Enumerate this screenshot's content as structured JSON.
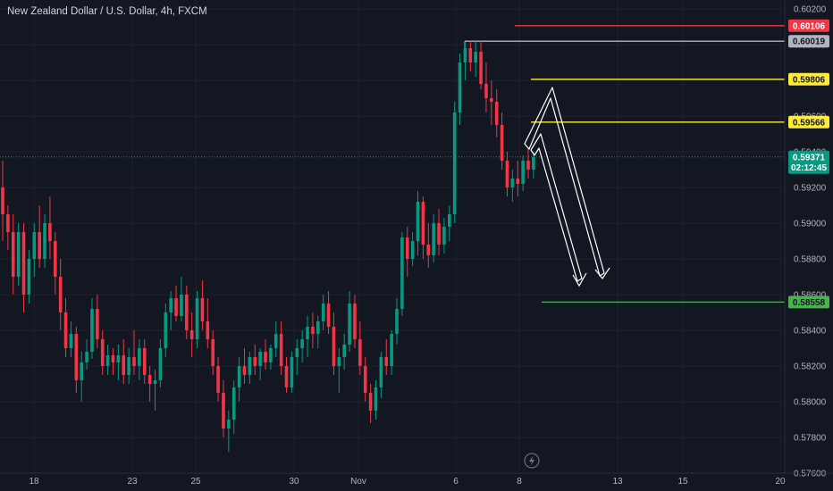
{
  "header": {
    "title": "New Zealand Dollar / U.S. Dollar, 4h, FXCM"
  },
  "chart_data": {
    "type": "candlestick",
    "symbol": "NZDUSD",
    "ylim": [
      0.575,
      0.6025
    ],
    "y_ticks": [
      "0.60200",
      "0.60000",
      "0.59800",
      "0.59600",
      "0.59400",
      "0.59200",
      "0.59000",
      "0.58800",
      "0.58600",
      "0.58400",
      "0.58200",
      "0.58000",
      "0.57800",
      "0.57600"
    ],
    "x_ticks": [
      "18",
      "23",
      "25",
      "30",
      "Nov",
      "6",
      "8",
      "13",
      "15",
      "20"
    ],
    "current_price": {
      "label": "0.59371",
      "countdown": "02:12:45",
      "color": "#089981"
    },
    "levels": [
      {
        "name": "red-level",
        "label": "0.60106",
        "color": "#f23645",
        "text_color": "#ffffff"
      },
      {
        "name": "grey-level",
        "label": "0.60019",
        "color": "#b2b5be",
        "text_color": "#131722"
      },
      {
        "name": "yellow-level-upper",
        "label": "0.59806",
        "color": "#ffeb3b",
        "text_color": "#131722"
      },
      {
        "name": "yellow-level-lower",
        "label": "0.59566",
        "color": "#ffeb3b",
        "text_color": "#131722"
      },
      {
        "name": "green-level",
        "label": "0.58558",
        "color": "#4caf50",
        "text_color": "#131722"
      }
    ],
    "series": [
      {
        "values": [
          [
            0.592,
            0.5935,
            0.589,
            0.5905
          ],
          [
            0.5905,
            0.591,
            0.5885,
            0.5895
          ],
          [
            0.5895,
            0.5905,
            0.586,
            0.587
          ],
          [
            0.587,
            0.59,
            0.5865,
            0.5895
          ],
          [
            0.5895,
            0.59,
            0.585,
            0.586
          ],
          [
            0.586,
            0.5885,
            0.5855,
            0.588
          ],
          [
            0.588,
            0.59,
            0.587,
            0.5895
          ],
          [
            0.5895,
            0.591,
            0.5875,
            0.588
          ],
          [
            0.588,
            0.5905,
            0.5875,
            0.59
          ],
          [
            0.59,
            0.5915,
            0.588,
            0.589
          ],
          [
            0.589,
            0.5895,
            0.586,
            0.587
          ],
          [
            0.587,
            0.588,
            0.584,
            0.585
          ],
          [
            0.585,
            0.5858,
            0.5825,
            0.583
          ],
          [
            0.583,
            0.5845,
            0.5825,
            0.5838
          ],
          [
            0.5838,
            0.5842,
            0.5805,
            0.5812
          ],
          [
            0.5812,
            0.5828,
            0.58,
            0.5822
          ],
          [
            0.5822,
            0.5835,
            0.5818,
            0.5828
          ],
          [
            0.5828,
            0.5858,
            0.5824,
            0.5852
          ],
          [
            0.5852,
            0.586,
            0.583,
            0.5835
          ],
          [
            0.5835,
            0.584,
            0.5815,
            0.582
          ],
          [
            0.582,
            0.5832,
            0.5815,
            0.5826
          ],
          [
            0.5826,
            0.583,
            0.5815,
            0.5822
          ],
          [
            0.5822,
            0.5832,
            0.5812,
            0.5826
          ],
          [
            0.5826,
            0.5835,
            0.581,
            0.5815
          ],
          [
            0.5815,
            0.583,
            0.581,
            0.5825
          ],
          [
            0.5825,
            0.584,
            0.5815,
            0.582
          ],
          [
            0.582,
            0.5835,
            0.5812,
            0.583
          ],
          [
            0.583,
            0.5835,
            0.581,
            0.5815
          ],
          [
            0.5815,
            0.582,
            0.58,
            0.581
          ],
          [
            0.581,
            0.5818,
            0.5795,
            0.5812
          ],
          [
            0.5812,
            0.5835,
            0.5808,
            0.583
          ],
          [
            0.583,
            0.5855,
            0.5825,
            0.585
          ],
          [
            0.585,
            0.5862,
            0.584,
            0.5858
          ],
          [
            0.5858,
            0.5865,
            0.5845,
            0.5848
          ],
          [
            0.5848,
            0.587,
            0.5845,
            0.586
          ],
          [
            0.586,
            0.5865,
            0.5835,
            0.584
          ],
          [
            0.584,
            0.585,
            0.5825,
            0.5835
          ],
          [
            0.5835,
            0.5862,
            0.583,
            0.5858
          ],
          [
            0.5858,
            0.5868,
            0.584,
            0.5845
          ],
          [
            0.5845,
            0.5858,
            0.583,
            0.5835
          ],
          [
            0.5835,
            0.584,
            0.5815,
            0.582
          ],
          [
            0.582,
            0.5825,
            0.58,
            0.5805
          ],
          [
            0.5805,
            0.5812,
            0.578,
            0.5785
          ],
          [
            0.5785,
            0.5795,
            0.5772,
            0.579
          ],
          [
            0.579,
            0.5812,
            0.5782,
            0.5808
          ],
          [
            0.5808,
            0.5825,
            0.58,
            0.582
          ],
          [
            0.582,
            0.583,
            0.581,
            0.5815
          ],
          [
            0.5815,
            0.5828,
            0.581,
            0.5825
          ],
          [
            0.5825,
            0.5832,
            0.5815,
            0.582
          ],
          [
            0.582,
            0.583,
            0.5812,
            0.5828
          ],
          [
            0.5828,
            0.5835,
            0.5818,
            0.5822
          ],
          [
            0.5822,
            0.5832,
            0.5818,
            0.583
          ],
          [
            0.583,
            0.5845,
            0.5825,
            0.5838
          ],
          [
            0.5838,
            0.5845,
            0.5815,
            0.582
          ],
          [
            0.582,
            0.5825,
            0.5805,
            0.5808
          ],
          [
            0.5808,
            0.5828,
            0.5805,
            0.5825
          ],
          [
            0.5825,
            0.5835,
            0.5815,
            0.583
          ],
          [
            0.583,
            0.584,
            0.5822,
            0.5835
          ],
          [
            0.5835,
            0.5848,
            0.5825,
            0.5842
          ],
          [
            0.5842,
            0.585,
            0.583,
            0.5838
          ],
          [
            0.5838,
            0.5848,
            0.583,
            0.5845
          ],
          [
            0.5845,
            0.586,
            0.584,
            0.5855
          ],
          [
            0.5855,
            0.5862,
            0.5838,
            0.5842
          ],
          [
            0.5842,
            0.585,
            0.5815,
            0.582
          ],
          [
            0.582,
            0.583,
            0.5805,
            0.5825
          ],
          [
            0.5825,
            0.5838,
            0.5818,
            0.5832
          ],
          [
            0.5832,
            0.5862,
            0.5828,
            0.5855
          ],
          [
            0.5855,
            0.586,
            0.583,
            0.5835
          ],
          [
            0.5835,
            0.5845,
            0.5815,
            0.582
          ],
          [
            0.582,
            0.5825,
            0.58,
            0.5805
          ],
          [
            0.5805,
            0.581,
            0.5788,
            0.5795
          ],
          [
            0.5795,
            0.5812,
            0.579,
            0.5808
          ],
          [
            0.5808,
            0.5828,
            0.5802,
            0.5825
          ],
          [
            0.5825,
            0.5835,
            0.5815,
            0.582
          ],
          [
            0.582,
            0.584,
            0.5815,
            0.5838
          ],
          [
            0.5838,
            0.5858,
            0.5832,
            0.5852
          ],
          [
            0.5852,
            0.5895,
            0.5848,
            0.5892
          ],
          [
            0.5892,
            0.5898,
            0.587,
            0.588
          ],
          [
            0.588,
            0.5895,
            0.5876,
            0.589
          ],
          [
            0.589,
            0.5918,
            0.5882,
            0.5912
          ],
          [
            0.5912,
            0.5915,
            0.588,
            0.5888
          ],
          [
            0.5888,
            0.59,
            0.5875,
            0.5882
          ],
          [
            0.5882,
            0.5905,
            0.5878,
            0.59
          ],
          [
            0.59,
            0.5908,
            0.5882,
            0.5888
          ],
          [
            0.5888,
            0.5903,
            0.5883,
            0.5898
          ],
          [
            0.5898,
            0.591,
            0.589,
            0.5905
          ],
          [
            0.5905,
            0.5968,
            0.59,
            0.5962
          ],
          [
            0.5962,
            0.5995,
            0.5955,
            0.599
          ],
          [
            0.599,
            0.6001,
            0.598,
            0.5998
          ],
          [
            0.5998,
            0.6002,
            0.5985,
            0.599
          ],
          [
            0.599,
            0.6002,
            0.5982,
            0.5996
          ],
          [
            0.5996,
            0.6002,
            0.5975,
            0.5978
          ],
          [
            0.5978,
            0.599,
            0.5962,
            0.597
          ],
          [
            0.597,
            0.598,
            0.5955,
            0.5968
          ],
          [
            0.5968,
            0.5975,
            0.5948,
            0.5955
          ],
          [
            0.5955,
            0.5962,
            0.593,
            0.5935
          ],
          [
            0.5935,
            0.594,
            0.5915,
            0.592
          ],
          [
            0.592,
            0.593,
            0.5912,
            0.5925
          ],
          [
            0.5925,
            0.5935,
            0.5915,
            0.5922
          ],
          [
            0.5922,
            0.5938,
            0.5918,
            0.5935
          ],
          [
            0.5935,
            0.5942,
            0.5925,
            0.593
          ],
          [
            0.593,
            0.594,
            0.5925,
            0.5937
          ]
        ]
      }
    ]
  }
}
